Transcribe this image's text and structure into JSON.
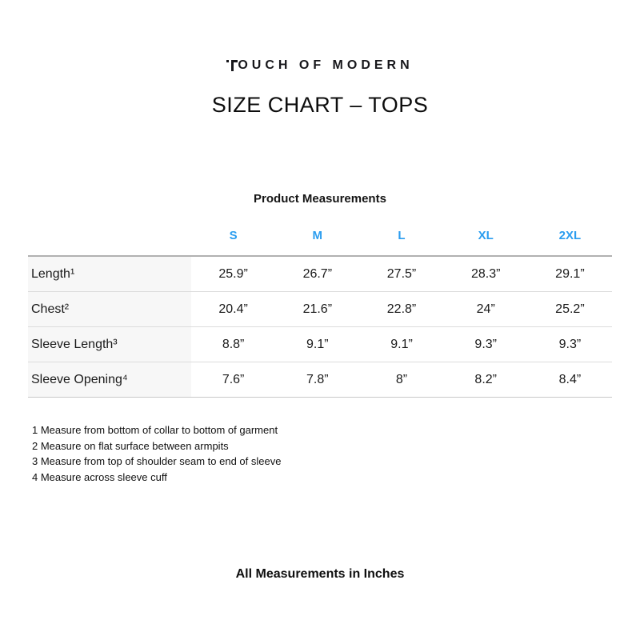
{
  "header": {
    "brand_mark_letter": "T",
    "brand_rest": "OUCH OF MODERN",
    "brand_full": "TOUCH OF MODERN",
    "title": "SIZE CHART – TOPS"
  },
  "table": {
    "caption": "Product Measurements",
    "columns": [
      "S",
      "M",
      "L",
      "XL",
      "2XL"
    ],
    "rows": [
      {
        "label": "Length¹",
        "values": [
          "25.9”",
          "26.7”",
          "27.5”",
          "28.3”",
          "29.1”"
        ]
      },
      {
        "label": "Chest²",
        "values": [
          "20.4”",
          "21.6”",
          "22.8”",
          "24”",
          "25.2”"
        ]
      },
      {
        "label": "Sleeve Length³",
        "values": [
          "8.8”",
          "9.1”",
          "9.1”",
          "9.3”",
          "9.3”"
        ]
      },
      {
        "label": "Sleeve Opening⁴",
        "values": [
          "7.6”",
          "7.8”",
          "8”",
          "8.2”",
          "8.4”"
        ]
      }
    ]
  },
  "footnotes": [
    "1 Measure from bottom of collar to bottom of garment",
    "2 Measure on flat surface between armpits",
    "3 Measure from top of shoulder seam to end of sleeve",
    "4 Measure across sleeve cuff"
  ],
  "footer": {
    "note": "All Measurements in Inches"
  },
  "colors": {
    "accent_blue": "#2b9def",
    "label_column_bg": "#f7f7f7",
    "top_rule": "#b1b1b1",
    "row_rule": "#dcdcdc"
  }
}
